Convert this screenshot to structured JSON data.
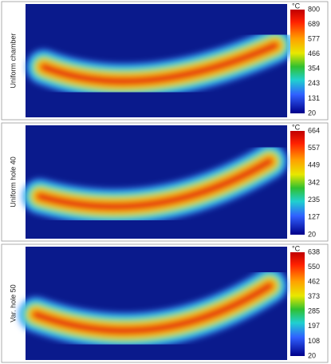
{
  "panels": [
    {
      "label": "Uniform chamber",
      "unit": "°C",
      "ticks": [
        800,
        689,
        577,
        466,
        354,
        243,
        131,
        20
      ]
    },
    {
      "label": "Uniform hole 40",
      "unit": "°C",
      "ticks": [
        664,
        557,
        449,
        342,
        235,
        127,
        20
      ]
    },
    {
      "label": "Var. hole 50",
      "unit": "°C",
      "ticks": [
        638,
        550,
        462,
        373,
        285,
        197,
        108,
        20
      ]
    }
  ]
}
